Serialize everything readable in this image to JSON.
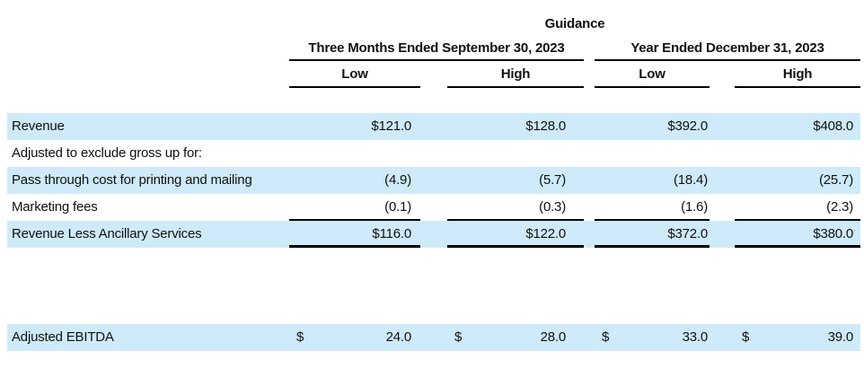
{
  "table": {
    "title": "Guidance",
    "column_groups": [
      {
        "label": "Three Months Ended September 30, 2023",
        "subcolumns": [
          "Low",
          "High"
        ]
      },
      {
        "label": "Year Ended December 31, 2023",
        "subcolumns": [
          "Low",
          "High"
        ]
      }
    ],
    "rows": [
      {
        "label": "Revenue",
        "values": [
          "$121.0",
          "$128.0",
          "$392.0",
          "$408.0"
        ],
        "shaded": true,
        "underline": "none"
      },
      {
        "label": "Adjusted to exclude gross up for:",
        "values": [
          "",
          "",
          "",
          ""
        ],
        "shaded": false,
        "underline": "none"
      },
      {
        "label": "Pass through cost for printing and mailing",
        "values": [
          "(4.9)",
          "(5.7)",
          "(18.4)",
          "(25.7)"
        ],
        "shaded": true,
        "underline": "none"
      },
      {
        "label": "Marketing fees",
        "values": [
          "(0.1)",
          "(0.3)",
          "(1.6)",
          "(2.3)"
        ],
        "shaded": false,
        "underline": "single"
      },
      {
        "label": "Revenue Less Ancillary Services",
        "values": [
          "$116.0",
          "$122.0",
          "$372.0",
          "$380.0"
        ],
        "shaded": true,
        "underline": "double"
      },
      {
        "label": "Adjusted EBITDA",
        "currency_prefix": "$",
        "values": [
          "24.0",
          "28.0",
          "33.0",
          "39.0"
        ],
        "shaded": true,
        "underline": "none",
        "gap_before": 85
      }
    ],
    "styles": {
      "shade_color": "#cfeaf8",
      "text_color": "#111111",
      "rule_color": "#000000"
    }
  }
}
